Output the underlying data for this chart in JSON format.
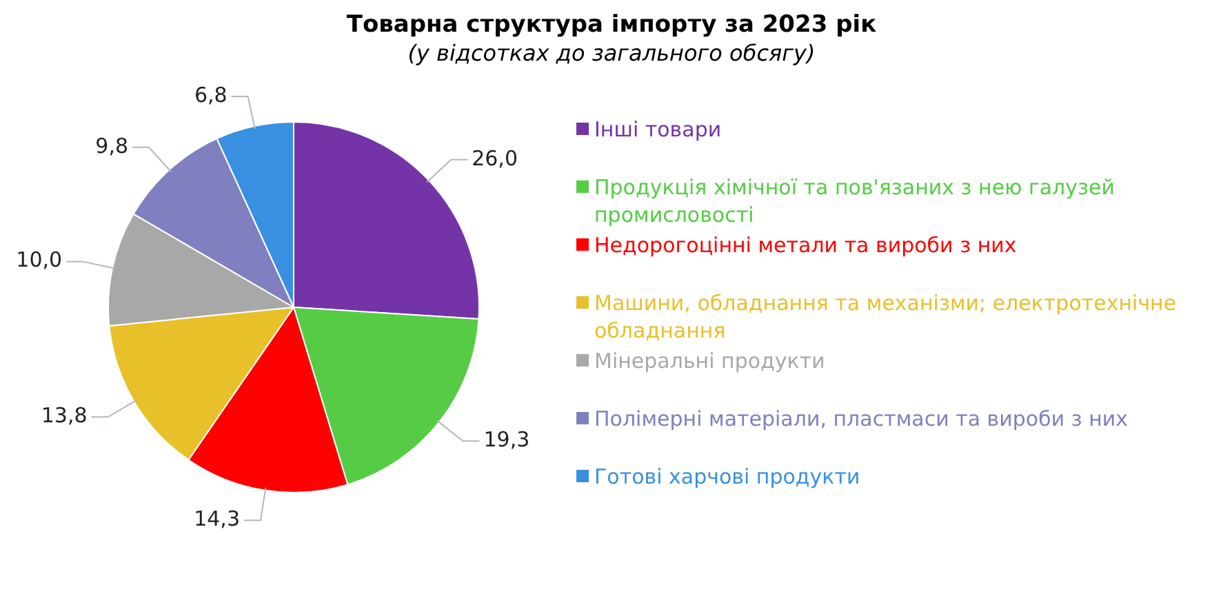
{
  "chart_data": {
    "type": "pie",
    "title": "Товарна структура імпорту за 2023 рік",
    "subtitle": "(у відсотках до загального обсягу)",
    "categories": [
      "Інші товари",
      "Продукція хімічної та пов'язаних з нею галузей промисловості",
      "Недорогоцінні метали та вироби з них",
      "Машини, обладнання та механізми; електротехнічне обладнання",
      "Мінеральні продукти",
      "Полімерні матеріали, пластмаси та вироби з них",
      "Готові харчові продукти"
    ],
    "values": [
      26.0,
      19.3,
      14.3,
      13.8,
      10.0,
      9.8,
      6.8
    ],
    "value_labels": [
      "26,0",
      "19,3",
      "14,3",
      "13,8",
      "10,0",
      "9,8",
      "6,8"
    ],
    "colors": [
      "#7434a8",
      "#55cc44",
      "#ff0000",
      "#e8c02a",
      "#a8a8a8",
      "#8080c0",
      "#3a90e0"
    ],
    "legend": "right"
  }
}
